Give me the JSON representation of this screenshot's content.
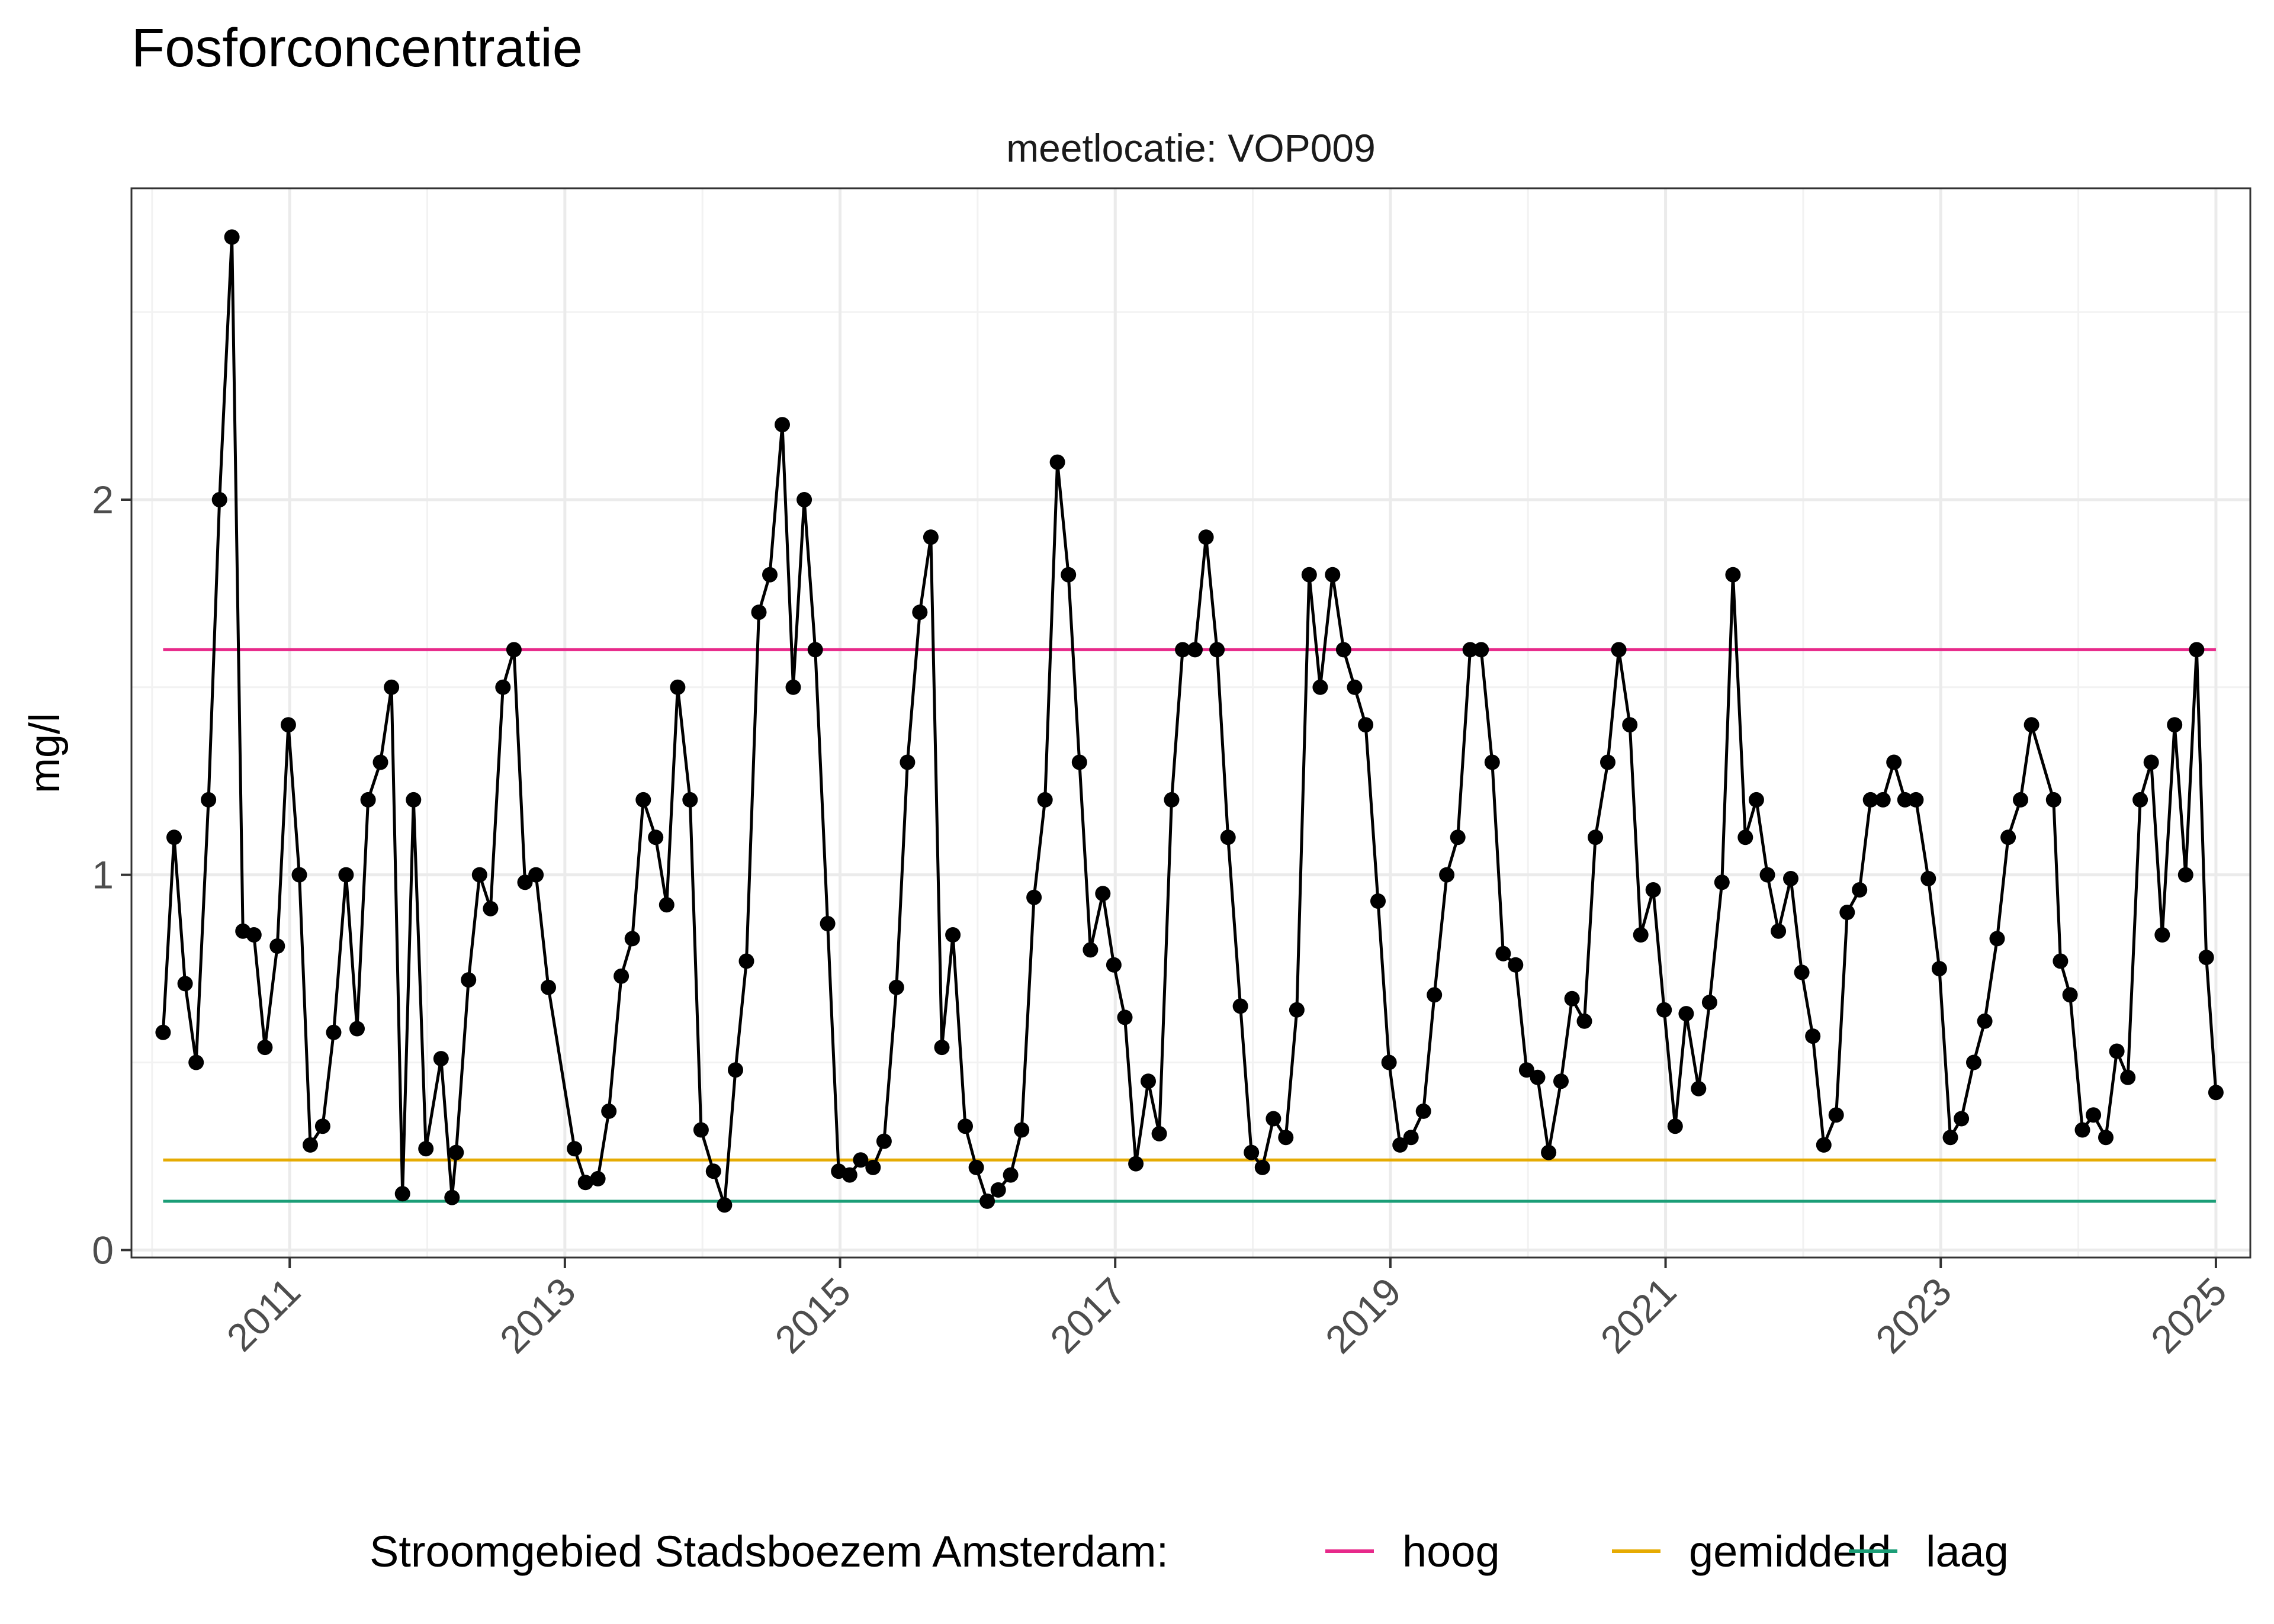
{
  "chart_data": {
    "type": "line",
    "title": "Fosforconcentratie",
    "subtitle": "meetlocatie: VOP009",
    "ylabel": "mg/l",
    "xlabel": "",
    "xlim": [
      2009.85,
      2025.25
    ],
    "ylim": [
      -0.02,
      2.83
    ],
    "x_ticks": [
      "2011",
      "2013",
      "2015",
      "2017",
      "2019",
      "2021",
      "2023",
      "2025"
    ],
    "y_ticks": [
      "0",
      "1",
      "2"
    ],
    "grid": true,
    "legend": {
      "title": "Stroomgebied Stadsboezem Amsterdam:",
      "position": "bottom",
      "entries": [
        {
          "label": "hoog",
          "color": "#e7298a"
        },
        {
          "label": "gemiddeld",
          "color": "#e6ab02"
        },
        {
          "label": "laag",
          "color": "#1b9e77"
        }
      ]
    },
    "reference_lines": [
      {
        "name": "hoog",
        "value": 1.6,
        "color": "#e7298a",
        "x": [
          2010.08,
          2025.0
        ]
      },
      {
        "name": "gemiddeld",
        "value": 0.24,
        "color": "#e6ab02",
        "x": [
          2010.08,
          2025.0
        ]
      },
      {
        "name": "laag",
        "value": 0.13,
        "color": "#1b9e77",
        "x": [
          2010.08,
          2025.0
        ]
      }
    ],
    "series": [
      {
        "color": "#000000",
        "points": [
          [
            2010.08,
            0.58
          ],
          [
            2010.16,
            1.1
          ],
          [
            2010.24,
            0.71
          ],
          [
            2010.32,
            0.5
          ],
          [
            2010.41,
            1.2
          ],
          [
            2010.49,
            2.0
          ],
          [
            2010.58,
            2.7
          ],
          [
            2010.66,
            0.85
          ],
          [
            2010.74,
            0.84
          ],
          [
            2010.82,
            0.54
          ],
          [
            2010.91,
            0.81
          ],
          [
            2010.99,
            1.4
          ],
          [
            2011.07,
            1.0
          ],
          [
            2011.15,
            0.28
          ],
          [
            2011.24,
            0.33
          ],
          [
            2011.32,
            0.58
          ],
          [
            2011.41,
            1.0
          ],
          [
            2011.49,
            0.59
          ],
          [
            2011.57,
            1.2
          ],
          [
            2011.66,
            1.3
          ],
          [
            2011.74,
            1.5
          ],
          [
            2011.82,
            0.15
          ],
          [
            2011.9,
            1.2
          ],
          [
            2011.99,
            0.27
          ],
          [
            2012.1,
            0.51
          ],
          [
            2012.18,
            0.14
          ],
          [
            2012.21,
            0.26
          ],
          [
            2012.3,
            0.72
          ],
          [
            2012.38,
            1.0
          ],
          [
            2012.46,
            0.91
          ],
          [
            2012.55,
            1.5
          ],
          [
            2012.63,
            1.6
          ],
          [
            2012.71,
            0.98
          ],
          [
            2012.79,
            1.0
          ],
          [
            2012.88,
            0.7
          ],
          [
            2013.07,
            0.27
          ],
          [
            2013.15,
            0.18
          ],
          [
            2013.24,
            0.19
          ],
          [
            2013.32,
            0.37
          ],
          [
            2013.41,
            0.73
          ],
          [
            2013.49,
            0.83
          ],
          [
            2013.57,
            1.2
          ],
          [
            2013.66,
            1.1
          ],
          [
            2013.74,
            0.92
          ],
          [
            2013.82,
            1.5
          ],
          [
            2013.91,
            1.2
          ],
          [
            2013.99,
            0.32
          ],
          [
            2014.08,
            0.21
          ],
          [
            2014.16,
            0.12
          ],
          [
            2014.24,
            0.48
          ],
          [
            2014.32,
            0.77
          ],
          [
            2014.41,
            1.7
          ],
          [
            2014.49,
            1.8
          ],
          [
            2014.58,
            2.2
          ],
          [
            2014.66,
            1.5
          ],
          [
            2014.74,
            2.0
          ],
          [
            2014.82,
            1.6
          ],
          [
            2014.91,
            0.87
          ],
          [
            2014.99,
            0.21
          ],
          [
            2015.07,
            0.2
          ],
          [
            2015.15,
            0.24
          ],
          [
            2015.24,
            0.22
          ],
          [
            2015.32,
            0.29
          ],
          [
            2015.41,
            0.7
          ],
          [
            2015.49,
            1.3
          ],
          [
            2015.58,
            1.7
          ],
          [
            2015.66,
            1.9
          ],
          [
            2015.74,
            0.54
          ],
          [
            2015.82,
            0.84
          ],
          [
            2015.91,
            0.33
          ],
          [
            2015.99,
            0.22
          ],
          [
            2016.07,
            0.13
          ],
          [
            2016.15,
            0.16
          ],
          [
            2016.24,
            0.2
          ],
          [
            2016.32,
            0.32
          ],
          [
            2016.41,
            0.94
          ],
          [
            2016.49,
            1.2
          ],
          [
            2016.58,
            2.1
          ],
          [
            2016.66,
            1.8
          ],
          [
            2016.74,
            1.3
          ],
          [
            2016.82,
            0.8
          ],
          [
            2016.91,
            0.95
          ],
          [
            2016.99,
            0.76
          ],
          [
            2017.07,
            0.62
          ],
          [
            2017.15,
            0.23
          ],
          [
            2017.24,
            0.45
          ],
          [
            2017.32,
            0.31
          ],
          [
            2017.41,
            1.2
          ],
          [
            2017.49,
            1.6
          ],
          [
            2017.58,
            1.6
          ],
          [
            2017.66,
            1.9
          ],
          [
            2017.74,
            1.6
          ],
          [
            2017.82,
            1.1
          ],
          [
            2017.91,
            0.65
          ],
          [
            2017.99,
            0.26
          ],
          [
            2018.07,
            0.22
          ],
          [
            2018.15,
            0.35
          ],
          [
            2018.24,
            0.3
          ],
          [
            2018.32,
            0.64
          ],
          [
            2018.41,
            1.8
          ],
          [
            2018.49,
            1.5
          ],
          [
            2018.58,
            1.8
          ],
          [
            2018.66,
            1.6
          ],
          [
            2018.74,
            1.5
          ],
          [
            2018.82,
            1.4
          ],
          [
            2018.91,
            0.93
          ],
          [
            2018.99,
            0.5
          ],
          [
            2019.07,
            0.28
          ],
          [
            2019.15,
            0.3
          ],
          [
            2019.24,
            0.37
          ],
          [
            2019.32,
            0.68
          ],
          [
            2019.41,
            1.0
          ],
          [
            2019.49,
            1.1
          ],
          [
            2019.58,
            1.6
          ],
          [
            2019.66,
            1.6
          ],
          [
            2019.74,
            1.3
          ],
          [
            2019.82,
            0.79
          ],
          [
            2019.91,
            0.76
          ],
          [
            2019.99,
            0.48
          ],
          [
            2020.07,
            0.46
          ],
          [
            2020.15,
            0.26
          ],
          [
            2020.24,
            0.45
          ],
          [
            2020.32,
            0.67
          ],
          [
            2020.41,
            0.61
          ],
          [
            2020.49,
            1.1
          ],
          [
            2020.58,
            1.3
          ],
          [
            2020.66,
            1.6
          ],
          [
            2020.74,
            1.4
          ],
          [
            2020.82,
            0.84
          ],
          [
            2020.91,
            0.96
          ],
          [
            2020.99,
            0.64
          ],
          [
            2021.07,
            0.33
          ],
          [
            2021.15,
            0.63
          ],
          [
            2021.24,
            0.43
          ],
          [
            2021.32,
            0.66
          ],
          [
            2021.41,
            0.98
          ],
          [
            2021.49,
            1.8
          ],
          [
            2021.58,
            1.1
          ],
          [
            2021.66,
            1.2
          ],
          [
            2021.74,
            1.0
          ],
          [
            2021.82,
            0.85
          ],
          [
            2021.91,
            0.99
          ],
          [
            2021.99,
            0.74
          ],
          [
            2022.07,
            0.57
          ],
          [
            2022.15,
            0.28
          ],
          [
            2022.24,
            0.36
          ],
          [
            2022.32,
            0.9
          ],
          [
            2022.41,
            0.96
          ],
          [
            2022.49,
            1.2
          ],
          [
            2022.58,
            1.2
          ],
          [
            2022.66,
            1.3
          ],
          [
            2022.74,
            1.2
          ],
          [
            2022.82,
            1.2
          ],
          [
            2022.91,
            0.99
          ],
          [
            2022.99,
            0.75
          ],
          [
            2023.07,
            0.3
          ],
          [
            2023.15,
            0.35
          ],
          [
            2023.24,
            0.5
          ],
          [
            2023.32,
            0.61
          ],
          [
            2023.41,
            0.83
          ],
          [
            2023.49,
            1.1
          ],
          [
            2023.58,
            1.2
          ],
          [
            2023.66,
            1.4
          ],
          [
            2023.82,
            1.2
          ],
          [
            2023.87,
            0.77
          ],
          [
            2023.94,
            0.68
          ],
          [
            2024.03,
            0.32
          ],
          [
            2024.11,
            0.36
          ],
          [
            2024.2,
            0.3
          ],
          [
            2024.28,
            0.53
          ],
          [
            2024.36,
            0.46
          ],
          [
            2024.45,
            1.2
          ],
          [
            2024.53,
            1.3
          ],
          [
            2024.61,
            0.84
          ],
          [
            2024.7,
            1.4
          ],
          [
            2024.78,
            1.0
          ],
          [
            2024.86,
            1.6
          ],
          [
            2024.93,
            0.78
          ],
          [
            2025.0,
            0.42
          ]
        ]
      }
    ]
  }
}
